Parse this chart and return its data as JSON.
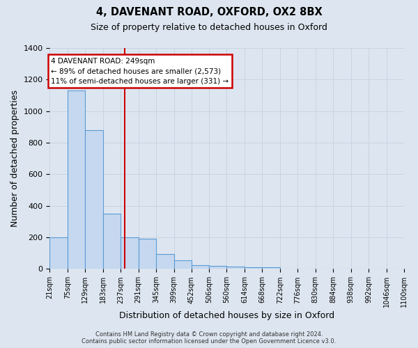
{
  "title1": "4, DAVENANT ROAD, OXFORD, OX2 8BX",
  "title2": "Size of property relative to detached houses in Oxford",
  "xlabel": "Distribution of detached houses by size in Oxford",
  "ylabel": "Number of detached properties",
  "bins": [
    "21sqm",
    "75sqm",
    "129sqm",
    "183sqm",
    "237sqm",
    "291sqm",
    "345sqm",
    "399sqm",
    "452sqm",
    "506sqm",
    "560sqm",
    "614sqm",
    "668sqm",
    "722sqm",
    "776sqm",
    "830sqm",
    "884sqm",
    "938sqm",
    "992sqm",
    "1046sqm",
    "1100sqm"
  ],
  "bin_edges": [
    21,
    75,
    129,
    183,
    237,
    291,
    345,
    399,
    452,
    506,
    560,
    614,
    668,
    722,
    776,
    830,
    884,
    938,
    992,
    1046,
    1100
  ],
  "values": [
    200,
    1130,
    880,
    350,
    200,
    190,
    95,
    55,
    25,
    20,
    15,
    12,
    12,
    0,
    0,
    0,
    0,
    0,
    0,
    0
  ],
  "bar_color": "#c5d8ef",
  "bar_edge_color": "#5b9bd5",
  "background_color": "#dde6f0",
  "red_line_x": 249,
  "annotation_text_line1": "4 DAVENANT ROAD: 249sqm",
  "annotation_text_line2": "← 89% of detached houses are smaller (2,573)",
  "annotation_text_line3": "11% of semi-detached houses are larger (331) →",
  "annotation_box_color": "#cc0000",
  "footer_line1": "Contains HM Land Registry data © Crown copyright and database right 2024.",
  "footer_line2": "Contains public sector information licensed under the Open Government Licence v3.0.",
  "ylim": [
    0,
    1400
  ],
  "yticks": [
    0,
    200,
    400,
    600,
    800,
    1000,
    1200,
    1400
  ],
  "title1_fontsize": 10.5,
  "title2_fontsize": 9
}
